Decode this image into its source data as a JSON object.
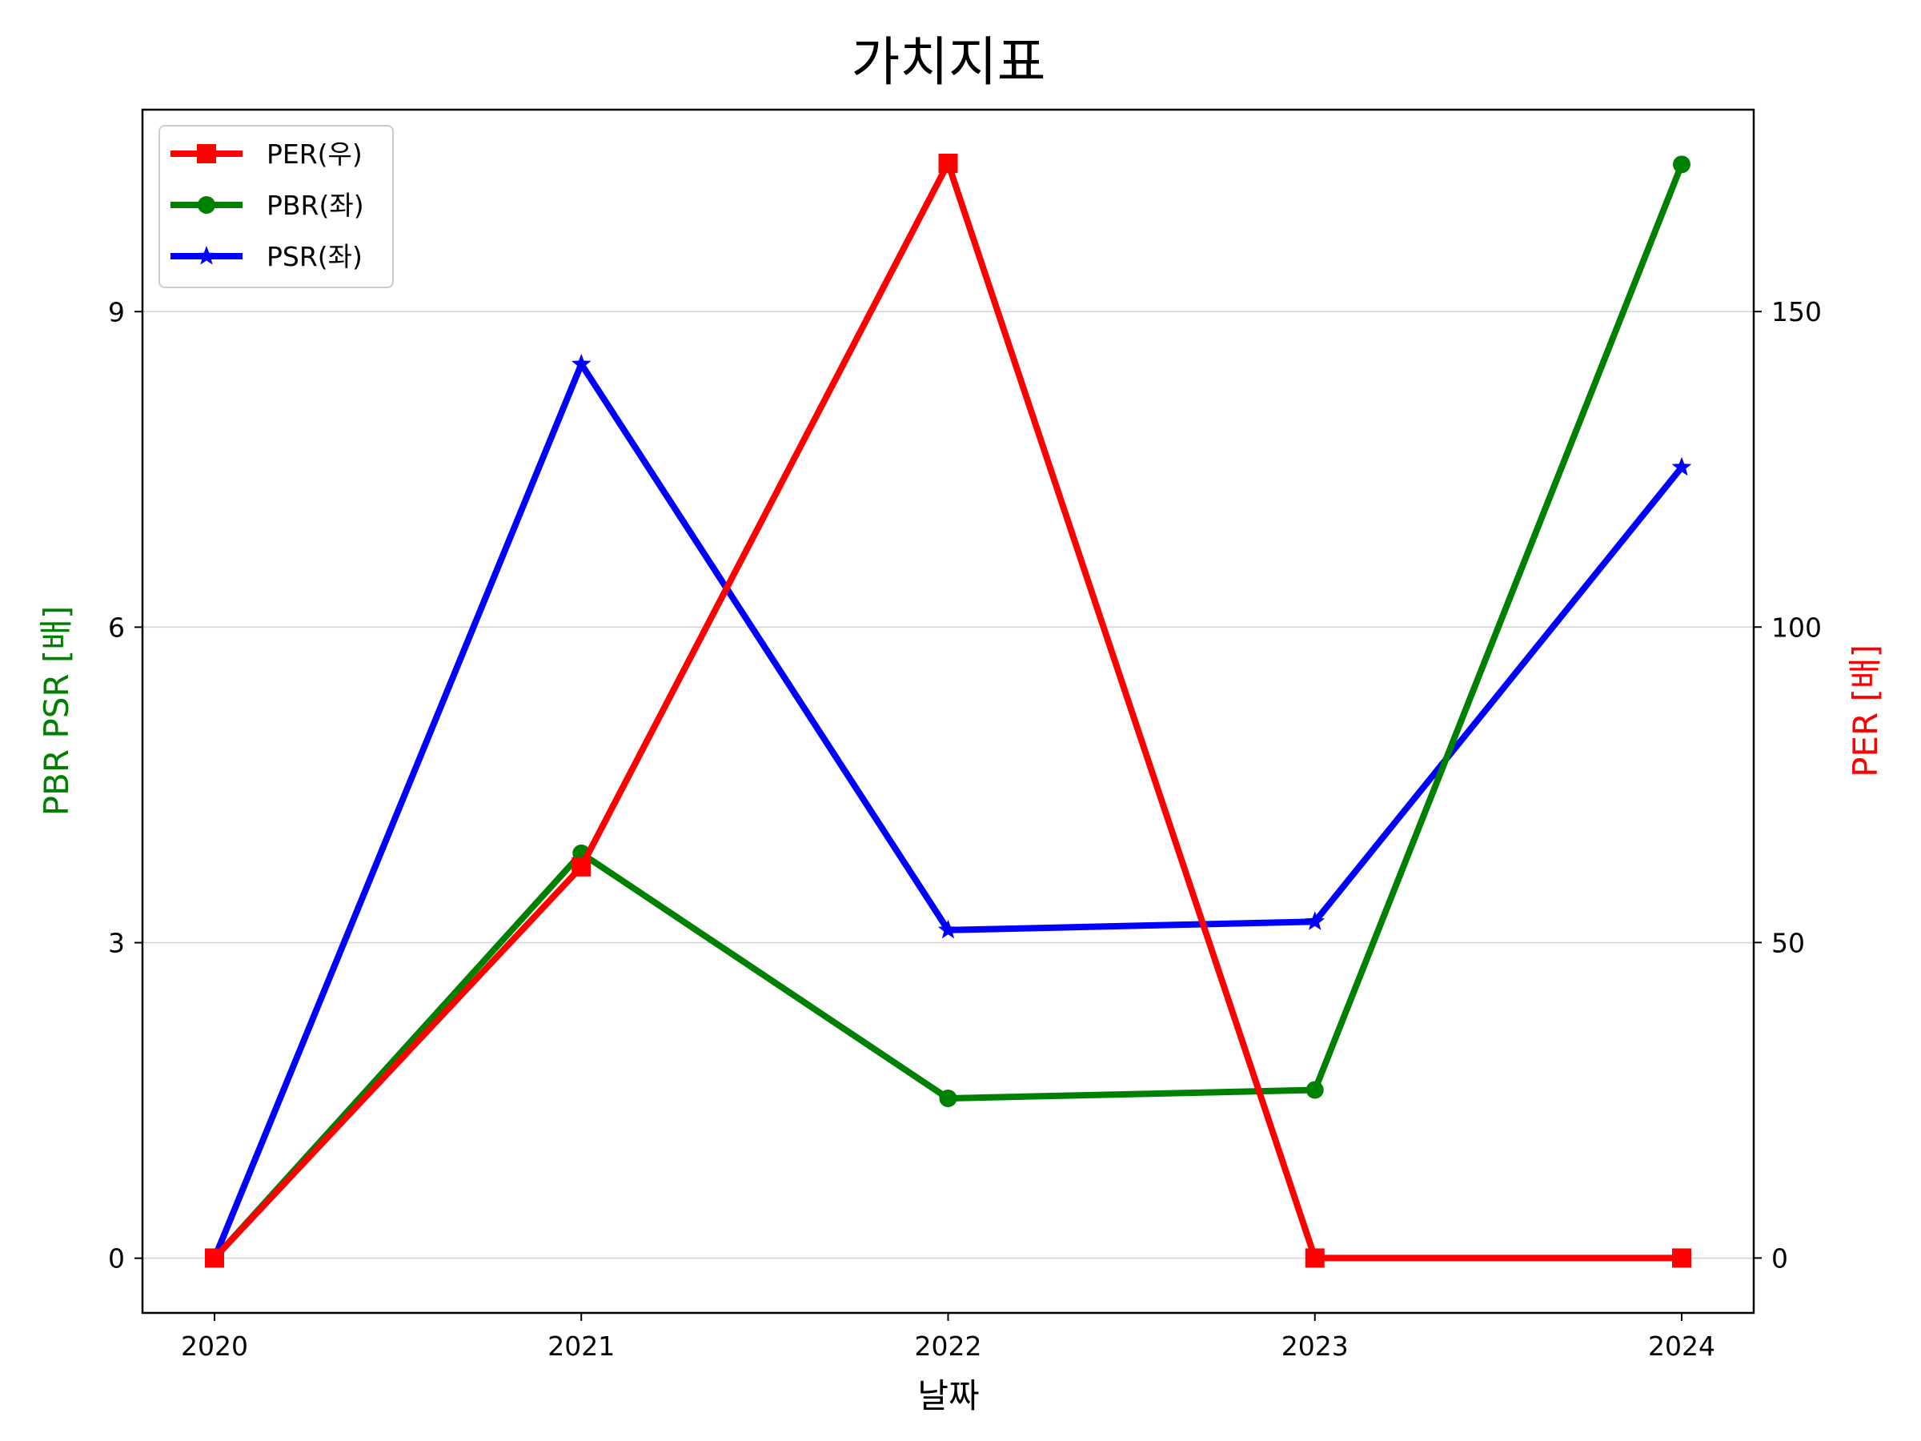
{
  "chart_data": {
    "type": "line",
    "title": "가치지표",
    "xlabel": "날짜",
    "ylabel_left": "PBR PSR [배]",
    "ylabel_right": "PER [배]",
    "ylabel_left_color": "#008000",
    "ylabel_right_color": "#ff0000",
    "categories": [
      "2020",
      "2021",
      "2022",
      "2023",
      "2024"
    ],
    "ylim_left": [
      -0.52,
      10.92
    ],
    "ylim_right": [
      -8.7,
      182.0
    ],
    "yticks_left": [
      0,
      3,
      6,
      9
    ],
    "yticks_right": [
      0,
      50,
      100,
      150
    ],
    "grid": "horizontal",
    "legend_position": "top-left",
    "series": [
      {
        "name": "PER(우)",
        "axis": "right",
        "color": "#ff0000",
        "marker": "square",
        "values": [
          0,
          62.0,
          173.5,
          0,
          0
        ]
      },
      {
        "name": "PBR(좌)",
        "axis": "left",
        "color": "#008000",
        "marker": "circle",
        "values": [
          0,
          3.85,
          1.52,
          1.6,
          10.4
        ]
      },
      {
        "name": "PSR(좌)",
        "axis": "left",
        "color": "#0000ff",
        "marker": "star",
        "values": [
          0,
          8.5,
          3.12,
          3.2,
          7.52
        ]
      }
    ]
  }
}
